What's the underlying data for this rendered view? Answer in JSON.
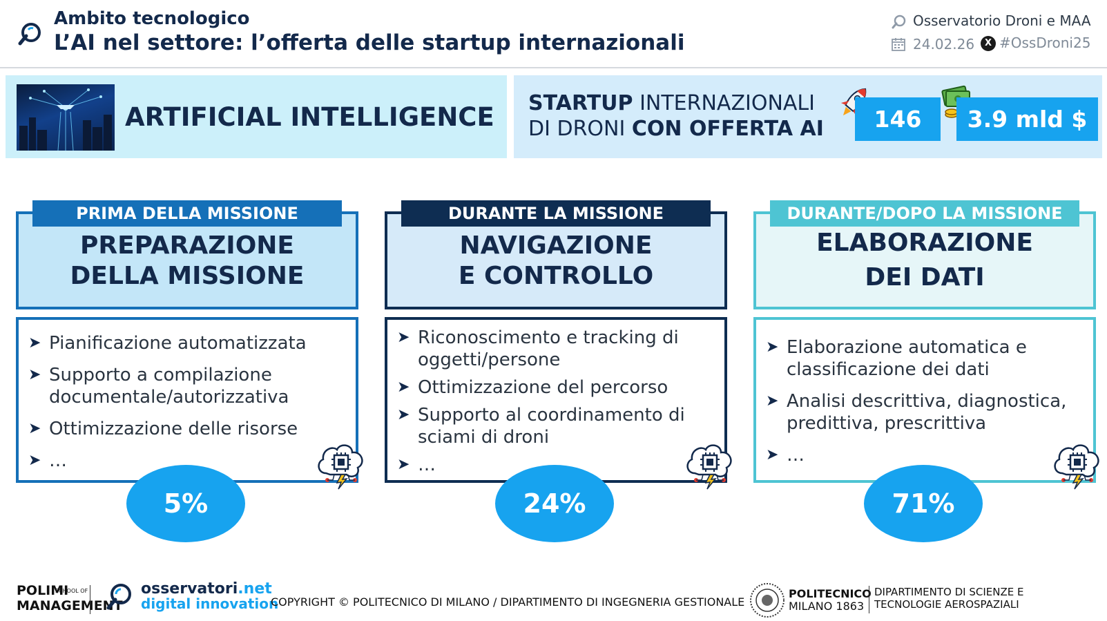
{
  "header": {
    "kicker": "Ambito tecnologico",
    "title": "L’AI nel settore: l’offerta delle startup internazionali",
    "observatory": "Osservatorio Droni e MAA",
    "date": "24.02.26",
    "hashtag": "#OssDroni25"
  },
  "banner": {
    "ai_title": "ARTIFICIAL INTELLIGENCE",
    "startup_line1_bold": "STARTUP",
    "startup_line1_rest": " INTERNAZIONALI",
    "startup_line2_rest": "DI DRONI ",
    "startup_line2_bold": "CON OFFERTA AI",
    "count": "146",
    "amount": "3.9 mld $"
  },
  "columns": [
    {
      "tab": "PRIMA DELLA MISSIONE",
      "title_line1": "PREPARAZIONE",
      "title_line2": "DELLA MISSIONE",
      "items": [
        "Pianificazione automatizzata",
        "Supporto a compilazione documentale/autorizzativa",
        "Ottimizzazione delle risorse",
        "…"
      ],
      "percent": "5%"
    },
    {
      "tab": "DURANTE LA MISSIONE",
      "title_line1": "NAVIGAZIONE",
      "title_line2": "E CONTROLLO",
      "items": [
        "Riconoscimento e tracking di oggetti/persone",
        "Ottimizzazione del percorso",
        "Supporto al coordinamento di sciami di droni",
        "…"
      ],
      "percent": "24%"
    },
    {
      "tab": "DURANTE/DOPO LA MISSIONE",
      "title_line1": "ELABORAZIONE",
      "title_line2": "DEI DATI",
      "items": [
        "Elaborazione automatica e classificazione dei dati",
        "Analisi descrittiva, diagnostica, predittiva, prescrittiva",
        "…"
      ],
      "percent": "71%"
    }
  ],
  "footer": {
    "polimi_line1": "POLIMI",
    "polimi_line2": "MANAGEMENT",
    "polimi_school": "SCHOOL OF",
    "osv_name": "osservatori",
    "osv_tld": ".net",
    "osv_tagline": "digital innovation",
    "copyright": "COPYRIGHT © POLITECNICO DI MILANO / DIPARTIMENTO DI INGEGNERIA GESTIONALE",
    "poli_line1": "POLITECNICO",
    "poli_line2": "MILANO 1863",
    "dept_line1": "DIPARTIMENTO DI SCIENZE E",
    "dept_line2": "TECNOLOGIE AEROSPAZIALI"
  },
  "colors": {
    "navy": "#13294b",
    "accent_blue": "#17a3ef",
    "tab_1": "#1570b8",
    "tab_2": "#0e2d52",
    "tab_3": "#4ec4d3"
  }
}
